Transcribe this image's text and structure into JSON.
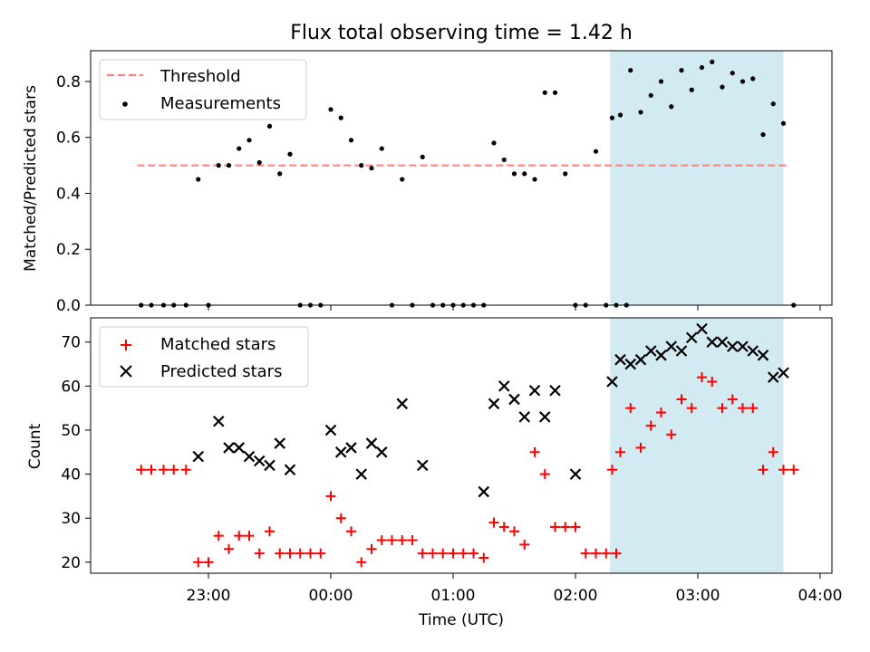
{
  "chart_data": [
    {
      "type": "scatter",
      "title": "Flux total observing time = 1.42 h",
      "xlabel": "",
      "ylabel": "Matched/Predicted stars",
      "ylim": [
        0,
        0.91
      ],
      "yticks": [
        "0.0",
        "0.2",
        "0.4",
        "0.6",
        "0.8"
      ],
      "ytick_values": [
        0,
        0.2,
        0.4,
        0.6,
        0.8
      ],
      "colors": {
        "threshold": "#ff7f7f",
        "measurements": "#000000",
        "shade": "#add8e6"
      },
      "threshold": {
        "name": "Threshold",
        "value": 0.5,
        "x_range": [
          "22:25",
          "03:45"
        ]
      },
      "shaded_region": [
        "02:17",
        "03:42"
      ],
      "legend": {
        "position": "upper-left",
        "entries": [
          "Threshold",
          "Measurements"
        ]
      },
      "series": [
        {
          "name": "Measurements",
          "points": [
            [
              "22:27",
              0.0
            ],
            [
              "22:32",
              0.0
            ],
            [
              "22:38",
              0.0
            ],
            [
              "22:43",
              0.0
            ],
            [
              "22:49",
              0.0
            ],
            [
              "22:55",
              0.45
            ],
            [
              "23:00",
              0.0
            ],
            [
              "23:05",
              0.5
            ],
            [
              "23:10",
              0.5
            ],
            [
              "23:15",
              0.56
            ],
            [
              "23:20",
              0.59
            ],
            [
              "23:25",
              0.51
            ],
            [
              "23:30",
              0.64
            ],
            [
              "23:35",
              0.47
            ],
            [
              "23:40",
              0.54
            ],
            [
              "23:45",
              0.0
            ],
            [
              "23:50",
              0.0
            ],
            [
              "23:55",
              0.0
            ],
            [
              "00:00",
              0.7
            ],
            [
              "00:05",
              0.67
            ],
            [
              "00:10",
              0.59
            ],
            [
              "00:15",
              0.5
            ],
            [
              "00:20",
              0.49
            ],
            [
              "00:25",
              0.56
            ],
            [
              "00:30",
              0.0
            ],
            [
              "00:35",
              0.45
            ],
            [
              "00:40",
              0.0
            ],
            [
              "00:45",
              0.53
            ],
            [
              "00:50",
              0.0
            ],
            [
              "00:55",
              0.0
            ],
            [
              "01:00",
              0.0
            ],
            [
              "01:05",
              0.0
            ],
            [
              "01:10",
              0.0
            ],
            [
              "01:15",
              0.0
            ],
            [
              "01:20",
              0.58
            ],
            [
              "01:25",
              0.52
            ],
            [
              "01:30",
              0.47
            ],
            [
              "01:35",
              0.47
            ],
            [
              "01:40",
              0.45
            ],
            [
              "01:45",
              0.76
            ],
            [
              "01:50",
              0.76
            ],
            [
              "01:55",
              0.47
            ],
            [
              "02:00",
              0.0
            ],
            [
              "02:05",
              0.0
            ],
            [
              "02:10",
              0.55
            ],
            [
              "02:15",
              0.0
            ],
            [
              "02:20",
              0.0
            ],
            [
              "02:25",
              0.0
            ],
            [
              "02:18",
              0.67
            ],
            [
              "02:22",
              0.68
            ],
            [
              "02:27",
              0.84
            ],
            [
              "02:32",
              0.69
            ],
            [
              "02:37",
              0.75
            ],
            [
              "02:42",
              0.8
            ],
            [
              "02:47",
              0.71
            ],
            [
              "02:52",
              0.84
            ],
            [
              "02:57",
              0.77
            ],
            [
              "03:02",
              0.85
            ],
            [
              "03:07",
              0.87
            ],
            [
              "03:12",
              0.78
            ],
            [
              "03:17",
              0.83
            ],
            [
              "03:22",
              0.8
            ],
            [
              "03:27",
              0.81
            ],
            [
              "03:32",
              0.61
            ],
            [
              "03:37",
              0.72
            ],
            [
              "03:42",
              0.65
            ],
            [
              "03:47",
              0.0
            ]
          ]
        }
      ]
    },
    {
      "type": "scatter",
      "xlabel": "Time (UTC)",
      "ylabel": "Count",
      "ylim": [
        17.5,
        75.5
      ],
      "yticks": [
        "20",
        "30",
        "40",
        "50",
        "60",
        "70"
      ],
      "ytick_values": [
        20,
        30,
        40,
        50,
        60,
        70
      ],
      "xticks": [
        "23:00",
        "00:00",
        "01:00",
        "02:00",
        "03:00",
        "04:00"
      ],
      "colors": {
        "matched": "#ff0000",
        "predicted": "#000000",
        "shade": "#add8e6"
      },
      "shaded_region": [
        "02:17",
        "03:42"
      ],
      "legend": {
        "position": "upper-left",
        "entries": [
          "Matched stars",
          "Predicted stars"
        ]
      },
      "series": [
        {
          "name": "Matched stars",
          "points": [
            [
              "22:27",
              41
            ],
            [
              "22:32",
              41
            ],
            [
              "22:38",
              41
            ],
            [
              "22:43",
              41
            ],
            [
              "22:49",
              41
            ],
            [
              "22:55",
              20
            ],
            [
              "23:00",
              20
            ],
            [
              "23:05",
              26
            ],
            [
              "23:10",
              23
            ],
            [
              "23:15",
              26
            ],
            [
              "23:20",
              26
            ],
            [
              "23:25",
              22
            ],
            [
              "23:30",
              27
            ],
            [
              "23:35",
              22
            ],
            [
              "23:40",
              22
            ],
            [
              "23:45",
              22
            ],
            [
              "23:50",
              22
            ],
            [
              "23:55",
              22
            ],
            [
              "00:00",
              35
            ],
            [
              "00:05",
              30
            ],
            [
              "00:10",
              27
            ],
            [
              "00:15",
              20
            ],
            [
              "00:20",
              23
            ],
            [
              "00:25",
              25
            ],
            [
              "00:30",
              25
            ],
            [
              "00:35",
              25
            ],
            [
              "00:40",
              25
            ],
            [
              "00:45",
              22
            ],
            [
              "00:50",
              22
            ],
            [
              "00:55",
              22
            ],
            [
              "01:00",
              22
            ],
            [
              "01:05",
              22
            ],
            [
              "01:10",
              22
            ],
            [
              "01:15",
              21
            ],
            [
              "01:20",
              29
            ],
            [
              "01:25",
              28
            ],
            [
              "01:30",
              27
            ],
            [
              "01:35",
              24
            ],
            [
              "01:40",
              45
            ],
            [
              "01:45",
              40
            ],
            [
              "01:50",
              28
            ],
            [
              "01:55",
              28
            ],
            [
              "02:00",
              28
            ],
            [
              "02:05",
              22
            ],
            [
              "02:10",
              22
            ],
            [
              "02:15",
              22
            ],
            [
              "02:20",
              22
            ],
            [
              "02:18",
              41
            ],
            [
              "02:22",
              45
            ],
            [
              "02:27",
              55
            ],
            [
              "02:32",
              46
            ],
            [
              "02:37",
              51
            ],
            [
              "02:42",
              54
            ],
            [
              "02:47",
              49
            ],
            [
              "02:52",
              57
            ],
            [
              "02:57",
              55
            ],
            [
              "03:02",
              62
            ],
            [
              "03:07",
              61
            ],
            [
              "03:12",
              55
            ],
            [
              "03:17",
              57
            ],
            [
              "03:22",
              55
            ],
            [
              "03:27",
              55
            ],
            [
              "03:32",
              41
            ],
            [
              "03:37",
              45
            ],
            [
              "03:42",
              41
            ],
            [
              "03:47",
              41
            ]
          ]
        },
        {
          "name": "Predicted stars",
          "points": [
            [
              "22:55",
              44
            ],
            [
              "23:05",
              52
            ],
            [
              "23:10",
              46
            ],
            [
              "23:15",
              46
            ],
            [
              "23:20",
              44
            ],
            [
              "23:25",
              43
            ],
            [
              "23:30",
              42
            ],
            [
              "23:35",
              47
            ],
            [
              "23:40",
              41
            ],
            [
              "00:00",
              50
            ],
            [
              "00:05",
              45
            ],
            [
              "00:10",
              46
            ],
            [
              "00:15",
              40
            ],
            [
              "00:20",
              47
            ],
            [
              "00:25",
              45
            ],
            [
              "00:35",
              56
            ],
            [
              "00:45",
              42
            ],
            [
              "01:15",
              36
            ],
            [
              "01:20",
              56
            ],
            [
              "01:25",
              60
            ],
            [
              "01:30",
              57
            ],
            [
              "01:35",
              53
            ],
            [
              "01:40",
              59
            ],
            [
              "01:45",
              53
            ],
            [
              "01:50",
              59
            ],
            [
              "02:00",
              40
            ],
            [
              "02:18",
              61
            ],
            [
              "02:22",
              66
            ],
            [
              "02:27",
              65
            ],
            [
              "02:32",
              66
            ],
            [
              "02:37",
              68
            ],
            [
              "02:42",
              67
            ],
            [
              "02:47",
              69
            ],
            [
              "02:52",
              68
            ],
            [
              "02:57",
              71
            ],
            [
              "03:02",
              73
            ],
            [
              "03:07",
              70
            ],
            [
              "03:12",
              70
            ],
            [
              "03:17",
              69
            ],
            [
              "03:22",
              69
            ],
            [
              "03:27",
              68
            ],
            [
              "03:32",
              67
            ],
            [
              "03:37",
              62
            ],
            [
              "03:42",
              63
            ]
          ]
        }
      ]
    }
  ]
}
